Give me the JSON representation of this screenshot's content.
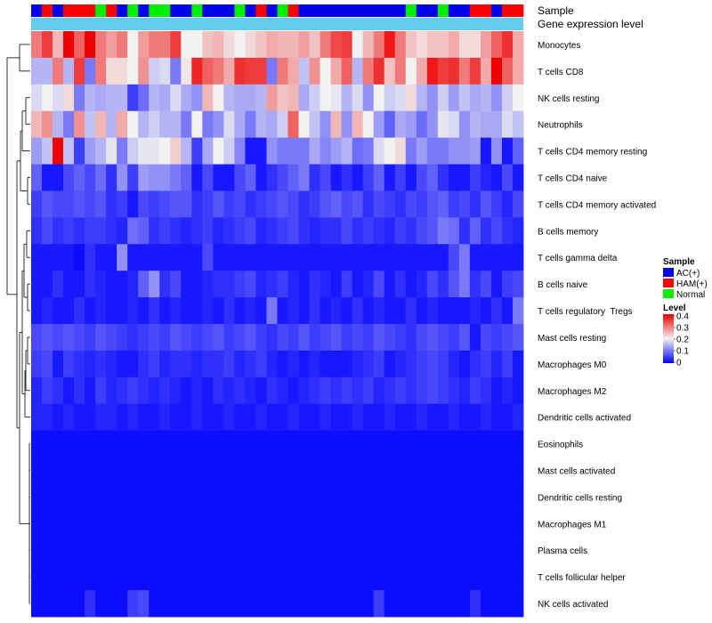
{
  "chart_data": {
    "type": "heatmap",
    "title": "",
    "annotation_labels": {
      "sample": "Sample",
      "gene_expression": "Gene expression level"
    },
    "legend": {
      "sample": {
        "title": "Sample",
        "entries": [
          {
            "label": "AC(+)",
            "color": "#0000ee"
          },
          {
            "label": "HAM(+)",
            "color": "#ff0000"
          },
          {
            "label": "Normal",
            "color": "#00ee00"
          }
        ]
      },
      "level": {
        "title": "Level",
        "ticks": [
          "0.4",
          "0.3",
          "0.2",
          "0.1",
          "0"
        ],
        "range": [
          0,
          0.4
        ],
        "colors": {
          "low": "#0000ff",
          "mid": "#f2f2f2",
          "high": "#ee0000"
        }
      },
      "placement": "right"
    },
    "sample_groups": [
      "A",
      "H",
      "A",
      "H",
      "H",
      "H",
      "N",
      "H",
      "A",
      "N",
      "A",
      "N",
      "N",
      "A",
      "A",
      "N",
      "A",
      "A",
      "A",
      "N",
      "A",
      "H",
      "A",
      "N",
      "H",
      "A",
      "A",
      "A",
      "A",
      "A",
      "A",
      "A",
      "A",
      "A",
      "A",
      "N",
      "A",
      "A",
      "N",
      "A",
      "A",
      "H",
      "H",
      "A",
      "H",
      "H"
    ],
    "gene_expression_bar_color": "#66ccee",
    "rows": [
      {
        "label": "Monocytes",
        "values": [
          0.3,
          0.35,
          0.25,
          0.4,
          0.32,
          0.4,
          0.3,
          0.27,
          0.3,
          0.2,
          0.27,
          0.3,
          0.3,
          0.35,
          0.2,
          0.2,
          0.24,
          0.25,
          0.22,
          0.2,
          0.22,
          0.24,
          0.26,
          0.25,
          0.25,
          0.27,
          0.24,
          0.3,
          0.34,
          0.35,
          0.2,
          0.25,
          0.3,
          0.38,
          0.3,
          0.24,
          0.22,
          0.24,
          0.24,
          0.26,
          0.22,
          0.22,
          0.27,
          0.32,
          0.36,
          0.26
        ]
      },
      {
        "label": "T cells CD8",
        "values": [
          0.15,
          0.15,
          0.3,
          0.15,
          0.35,
          0.1,
          0.3,
          0.22,
          0.22,
          0.2,
          0.28,
          0.17,
          0.18,
          0.1,
          0.21,
          0.37,
          0.32,
          0.3,
          0.26,
          0.36,
          0.35,
          0.35,
          0.1,
          0.3,
          0.26,
          0.16,
          0.28,
          0.2,
          0.26,
          0.32,
          0.15,
          0.3,
          0.36,
          0.24,
          0.3,
          0.2,
          0.26,
          0.38,
          0.35,
          0.36,
          0.3,
          0.35,
          0.26,
          0.4,
          0.32,
          0.26
        ]
      },
      {
        "label": "NK cells resting",
        "values": [
          0.18,
          0.2,
          0.18,
          0.22,
          0.1,
          0.15,
          0.14,
          0.15,
          0.15,
          0.05,
          0.09,
          0.15,
          0.14,
          0.18,
          0.14,
          0.12,
          0.25,
          0.2,
          0.15,
          0.14,
          0.14,
          0.15,
          0.27,
          0.24,
          0.25,
          0.14,
          0.17,
          0.2,
          0.19,
          0.15,
          0.18,
          0.12,
          0.2,
          0.17,
          0.18,
          0.22,
          0.15,
          0.12,
          0.17,
          0.13,
          0.16,
          0.14,
          0.15,
          0.12,
          0.17,
          0.2
        ]
      },
      {
        "label": "Neutrophils",
        "values": [
          0.25,
          0.28,
          0.15,
          0.1,
          0.28,
          0.16,
          0.25,
          0.15,
          0.26,
          0.2,
          0.15,
          0.17,
          0.15,
          0.15,
          0.1,
          0.2,
          0.1,
          0.12,
          0.18,
          0.14,
          0.1,
          0.15,
          0.14,
          0.17,
          0.32,
          0.2,
          0.16,
          0.12,
          0.25,
          0.12,
          0.25,
          0.2,
          0.13,
          0.08,
          0.14,
          0.13,
          0.09,
          0.12,
          0.19,
          0.18,
          0.12,
          0.15,
          0.14,
          0.14,
          0.18,
          0.16
        ]
      },
      {
        "label": "T cells CD4 memory resting",
        "values": [
          0.13,
          0.16,
          0.4,
          0.16,
          0.05,
          0.13,
          0.15,
          0.19,
          0.1,
          0.17,
          0.19,
          0.19,
          0.2,
          0.23,
          0.15,
          0.05,
          0.14,
          0.2,
          0.17,
          0.11,
          0.02,
          0.02,
          0.12,
          0.1,
          0.1,
          0.1,
          0.14,
          0.11,
          0.13,
          0.15,
          0.09,
          0.1,
          0.18,
          0.2,
          0.22,
          0.1,
          0.13,
          0.1,
          0.1,
          0.12,
          0.12,
          0.13,
          0.02,
          0.12,
          0.02,
          0.08
        ]
      },
      {
        "label": "T cells CD4 naive",
        "values": [
          0.08,
          0.02,
          0.02,
          0.06,
          0.08,
          0.06,
          0.09,
          0.04,
          0.12,
          0.05,
          0.13,
          0.12,
          0.12,
          0.1,
          0.08,
          0.02,
          0.06,
          0.02,
          0.02,
          0.06,
          0.08,
          0.02,
          0.04,
          0.06,
          0.08,
          0.1,
          0.04,
          0.06,
          0.02,
          0.04,
          0.02,
          0.05,
          0.08,
          0.02,
          0.05,
          0.02,
          0.06,
          0.08,
          0.04,
          0.02,
          0.02,
          0.05,
          0.03,
          0.02,
          0.06,
          0.02
        ]
      },
      {
        "label": "T cells CD4 memory activated",
        "values": [
          0.05,
          0.07,
          0.06,
          0.06,
          0.07,
          0.06,
          0.07,
          0.04,
          0.05,
          0.02,
          0.06,
          0.05,
          0.06,
          0.07,
          0.07,
          0.04,
          0.05,
          0.07,
          0.05,
          0.06,
          0.04,
          0.05,
          0.06,
          0.07,
          0.06,
          0.04,
          0.05,
          0.07,
          0.08,
          0.06,
          0.07,
          0.04,
          0.06,
          0.05,
          0.04,
          0.06,
          0.05,
          0.07,
          0.08,
          0.05,
          0.06,
          0.04,
          0.07,
          0.05,
          0.03,
          0.06
        ]
      },
      {
        "label": "B cells memory",
        "values": [
          0.04,
          0.06,
          0.04,
          0.05,
          0.04,
          0.05,
          0.05,
          0.04,
          0.03,
          0.09,
          0.08,
          0.04,
          0.05,
          0.04,
          0.03,
          0.04,
          0.05,
          0.03,
          0.04,
          0.05,
          0.06,
          0.03,
          0.04,
          0.05,
          0.06,
          0.04,
          0.03,
          0.04,
          0.04,
          0.06,
          0.04,
          0.05,
          0.04,
          0.03,
          0.05,
          0.04,
          0.06,
          0.07,
          0.1,
          0.09,
          0.04,
          0.08,
          0.04,
          0.06,
          0.04,
          0.03
        ]
      },
      {
        "label": "T cells gamma delta",
        "values": [
          0.02,
          0.02,
          0.02,
          0.02,
          0.01,
          0.04,
          0.02,
          0.02,
          0.12,
          0.02,
          0.02,
          0.02,
          0.02,
          0.02,
          0.02,
          0.02,
          0.06,
          0.02,
          0.02,
          0.02,
          0.02,
          0.02,
          0.02,
          0.02,
          0.02,
          0.02,
          0.02,
          0.02,
          0.02,
          0.02,
          0.02,
          0.02,
          0.02,
          0.02,
          0.02,
          0.02,
          0.02,
          0.02,
          0.02,
          0.06,
          0.1,
          0.02,
          0.02,
          0.02,
          0.02,
          0.02
        ]
      },
      {
        "label": "B cells naive",
        "values": [
          0.02,
          0.02,
          0.04,
          0.02,
          0.02,
          0.04,
          0.03,
          0.02,
          0.02,
          0.03,
          0.08,
          0.12,
          0.04,
          0.06,
          0.02,
          0.02,
          0.03,
          0.04,
          0.04,
          0.05,
          0.06,
          0.03,
          0.04,
          0.05,
          0.03,
          0.02,
          0.04,
          0.03,
          0.02,
          0.05,
          0.02,
          0.03,
          0.06,
          0.02,
          0.04,
          0.02,
          0.03,
          0.06,
          0.04,
          0.07,
          0.1,
          0.04,
          0.06,
          0.02,
          0.05,
          0.06
        ]
      },
      {
        "label": "T cells regulatory  Tregs",
        "values": [
          0.02,
          0.03,
          0.02,
          0.02,
          0.04,
          0.02,
          0.03,
          0.02,
          0.02,
          0.03,
          0.02,
          0.04,
          0.02,
          0.03,
          0.02,
          0.02,
          0.03,
          0.02,
          0.04,
          0.02,
          0.03,
          0.02,
          0.1,
          0.02,
          0.03,
          0.02,
          0.04,
          0.02,
          0.03,
          0.02,
          0.04,
          0.02,
          0.03,
          0.02,
          0.02,
          0.04,
          0.02,
          0.03,
          0.02,
          0.02,
          0.02,
          0.03,
          0.02,
          0.04,
          0.02,
          0.1
        ]
      },
      {
        "label": "Mast cells resting",
        "values": [
          0.06,
          0.07,
          0.06,
          0.07,
          0.06,
          0.05,
          0.07,
          0.06,
          0.05,
          0.04,
          0.05,
          0.06,
          0.05,
          0.07,
          0.06,
          0.05,
          0.06,
          0.07,
          0.05,
          0.06,
          0.07,
          0.05,
          0.04,
          0.06,
          0.05,
          0.07,
          0.05,
          0.06,
          0.07,
          0.05,
          0.06,
          0.05,
          0.07,
          0.06,
          0.05,
          0.04,
          0.06,
          0.07,
          0.06,
          0.05,
          0.07,
          0.02,
          0.06,
          0.05,
          0.06,
          0.07
        ]
      },
      {
        "label": "Macrophages M0",
        "values": [
          0.05,
          0.06,
          0.02,
          0.05,
          0.04,
          0.03,
          0.04,
          0.03,
          0.02,
          0.02,
          0.04,
          0.05,
          0.03,
          0.04,
          0.04,
          0.03,
          0.04,
          0.04,
          0.05,
          0.03,
          0.04,
          0.05,
          0.03,
          0.02,
          0.03,
          0.02,
          0.03,
          0.02,
          0.02,
          0.02,
          0.03,
          0.04,
          0.05,
          0.02,
          0.03,
          0.04,
          0.05,
          0.06,
          0.05,
          0.03,
          0.02,
          0.04,
          0.05,
          0.03,
          0.05,
          0.02
        ]
      },
      {
        "label": "Macrophages M2",
        "values": [
          0.03,
          0.05,
          0.04,
          0.02,
          0.04,
          0.02,
          0.05,
          0.03,
          0.04,
          0.05,
          0.04,
          0.03,
          0.04,
          0.03,
          0.02,
          0.03,
          0.02,
          0.04,
          0.03,
          0.04,
          0.03,
          0.02,
          0.04,
          0.03,
          0.02,
          0.03,
          0.04,
          0.05,
          0.04,
          0.05,
          0.04,
          0.05,
          0.03,
          0.04,
          0.05,
          0.04,
          0.05,
          0.06,
          0.05,
          0.04,
          0.03,
          0.05,
          0.04,
          0.02,
          0.03,
          0.02
        ]
      },
      {
        "label": "Dendritic cells activated",
        "values": [
          0.03,
          0.03,
          0.02,
          0.03,
          0.02,
          0.02,
          0.03,
          0.03,
          0.02,
          0.03,
          0.02,
          0.02,
          0.03,
          0.02,
          0.02,
          0.03,
          0.02,
          0.02,
          0.03,
          0.02,
          0.02,
          0.03,
          0.02,
          0.02,
          0.03,
          0.02,
          0.02,
          0.03,
          0.02,
          0.02,
          0.03,
          0.02,
          0.02,
          0.03,
          0.02,
          0.02,
          0.03,
          0.02,
          0.02,
          0.03,
          0.02,
          0.02,
          0.03,
          0.02,
          0.02,
          0.03
        ]
      },
      {
        "label": "Eosinophils",
        "values": [
          0.01,
          0.01,
          0.01,
          0.01,
          0.01,
          0.01,
          0.01,
          0.01,
          0.01,
          0.01,
          0.01,
          0.01,
          0.01,
          0.01,
          0.01,
          0.01,
          0.01,
          0.01,
          0.01,
          0.01,
          0.01,
          0.01,
          0.01,
          0.01,
          0.01,
          0.01,
          0.01,
          0.01,
          0.01,
          0.01,
          0.01,
          0.01,
          0.01,
          0.01,
          0.01,
          0.01,
          0.01,
          0.01,
          0.01,
          0.01,
          0.01,
          0.01,
          0.01,
          0.01,
          0.01,
          0.01
        ]
      },
      {
        "label": "Mast cells activated",
        "values": [
          0.01,
          0.01,
          0.01,
          0.01,
          0.01,
          0.01,
          0.01,
          0.01,
          0.01,
          0.01,
          0.01,
          0.01,
          0.01,
          0.01,
          0.01,
          0.01,
          0.01,
          0.01,
          0.01,
          0.01,
          0.01,
          0.01,
          0.01,
          0.01,
          0.01,
          0.01,
          0.01,
          0.01,
          0.01,
          0.01,
          0.01,
          0.01,
          0.01,
          0.01,
          0.01,
          0.01,
          0.01,
          0.01,
          0.01,
          0.01,
          0.01,
          0.01,
          0.01,
          0.01,
          0.01,
          0.01
        ]
      },
      {
        "label": "Dendritic cells resting",
        "values": [
          0.01,
          0.01,
          0.01,
          0.01,
          0.01,
          0.01,
          0.01,
          0.01,
          0.01,
          0.01,
          0.01,
          0.01,
          0.01,
          0.01,
          0.01,
          0.01,
          0.01,
          0.01,
          0.01,
          0.01,
          0.01,
          0.01,
          0.01,
          0.01,
          0.01,
          0.01,
          0.01,
          0.01,
          0.01,
          0.01,
          0.01,
          0.01,
          0.01,
          0.01,
          0.01,
          0.01,
          0.01,
          0.01,
          0.01,
          0.01,
          0.01,
          0.01,
          0.01,
          0.01,
          0.01,
          0.01
        ]
      },
      {
        "label": "Macrophages M1",
        "values": [
          0.01,
          0.01,
          0.01,
          0.01,
          0.01,
          0.01,
          0.01,
          0.01,
          0.01,
          0.01,
          0.01,
          0.01,
          0.01,
          0.01,
          0.01,
          0.01,
          0.01,
          0.01,
          0.01,
          0.01,
          0.01,
          0.01,
          0.01,
          0.01,
          0.01,
          0.01,
          0.01,
          0.01,
          0.01,
          0.01,
          0.01,
          0.01,
          0.01,
          0.01,
          0.01,
          0.01,
          0.01,
          0.01,
          0.01,
          0.01,
          0.01,
          0.01,
          0.01,
          0.01,
          0.01,
          0.01
        ]
      },
      {
        "label": "Plasma cells",
        "values": [
          0.01,
          0.01,
          0.01,
          0.01,
          0.01,
          0.01,
          0.01,
          0.01,
          0.01,
          0.01,
          0.01,
          0.01,
          0.01,
          0.01,
          0.01,
          0.01,
          0.01,
          0.01,
          0.01,
          0.01,
          0.01,
          0.01,
          0.01,
          0.01,
          0.01,
          0.01,
          0.01,
          0.01,
          0.01,
          0.01,
          0.01,
          0.01,
          0.01,
          0.01,
          0.01,
          0.01,
          0.01,
          0.01,
          0.01,
          0.01,
          0.01,
          0.01,
          0.01,
          0.01,
          0.01,
          0.01
        ]
      },
      {
        "label": "T cells follicular helper",
        "values": [
          0.01,
          0.01,
          0.01,
          0.01,
          0.01,
          0.01,
          0.01,
          0.01,
          0.01,
          0.01,
          0.01,
          0.01,
          0.01,
          0.01,
          0.01,
          0.01,
          0.01,
          0.01,
          0.01,
          0.01,
          0.01,
          0.01,
          0.01,
          0.01,
          0.01,
          0.01,
          0.01,
          0.01,
          0.01,
          0.01,
          0.01,
          0.01,
          0.01,
          0.01,
          0.01,
          0.01,
          0.01,
          0.01,
          0.01,
          0.01,
          0.01,
          0.01,
          0.01,
          0.01,
          0.01,
          0.01
        ]
      },
      {
        "label": "NK cells activated",
        "values": [
          0.01,
          0.01,
          0.01,
          0.01,
          0.01,
          0.04,
          0.01,
          0.01,
          0.01,
          0.05,
          0.06,
          0.01,
          0.01,
          0.01,
          0.01,
          0.01,
          0.01,
          0.01,
          0.01,
          0.01,
          0.01,
          0.01,
          0.01,
          0.01,
          0.01,
          0.01,
          0.01,
          0.01,
          0.01,
          0.01,
          0.01,
          0.01,
          0.05,
          0.01,
          0.01,
          0.01,
          0.01,
          0.01,
          0.01,
          0.01,
          0.01,
          0.04,
          0.01,
          0.01,
          0.01,
          0.01
        ]
      }
    ]
  }
}
